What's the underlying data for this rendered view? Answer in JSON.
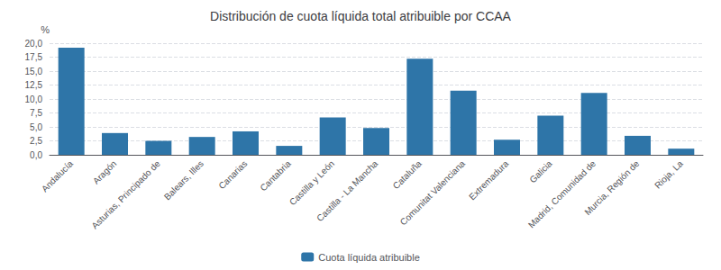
{
  "chart_data": {
    "type": "bar",
    "title": "Distribución de cuota líquida total atribuible por CCAA",
    "categories": [
      "Andalucía",
      "Aragón",
      "Asturias, Principado de",
      "Balears, Illes",
      "Canarias",
      "Cantabria",
      "Castilla y León",
      "Castilla - La Mancha",
      "Cataluña",
      "Comunitat Valenciana",
      "Extremadura",
      "Galicia",
      "Madrid, Comunidad de",
      "Murcia, Región de",
      "Rioja, La"
    ],
    "series": [
      {
        "name": "Cuota líquida atribuible",
        "color": "#2e75a8",
        "values": [
          19.2,
          3.9,
          2.5,
          3.2,
          4.2,
          1.6,
          6.7,
          4.8,
          17.2,
          11.5,
          2.7,
          7.0,
          11.1,
          3.4,
          1.1
        ]
      }
    ],
    "ylabel": "%",
    "ylim": [
      0,
      20.0
    ],
    "yticks": [
      {
        "value": 0.0,
        "label": "0,0"
      },
      {
        "value": 2.5,
        "label": "2,5"
      },
      {
        "value": 5.0,
        "label": "5,0"
      },
      {
        "value": 7.5,
        "label": "7,5"
      },
      {
        "value": 10.0,
        "label": "10,0"
      },
      {
        "value": 12.5,
        "label": "12,5"
      },
      {
        "value": 15.0,
        "label": "15,0"
      },
      {
        "value": 17.5,
        "label": "17,5"
      },
      {
        "value": 20.0,
        "label": "20,0"
      }
    ],
    "grid": true,
    "legend": "bottom"
  }
}
